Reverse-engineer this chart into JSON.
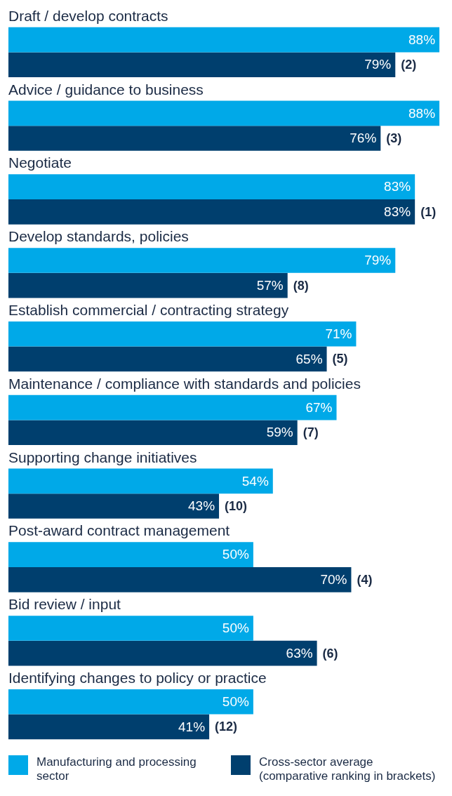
{
  "chart_data": {
    "type": "bar",
    "orientation": "horizontal",
    "categories": [
      "Draft / develop contracts",
      "Advice / guidance to business",
      "Negotiate",
      "Develop standards, policies",
      "Establish commercial / contracting strategy",
      "Maintenance / compliance with standards and policies",
      "Supporting change initiatives",
      "Post-award contract management",
      "Bid review / input",
      "Identifying changes to policy or practice"
    ],
    "series": [
      {
        "name": "Manufacturing and processing sector",
        "color": "#00a9e8",
        "values": [
          88,
          88,
          83,
          79,
          71,
          67,
          54,
          50,
          50,
          50
        ],
        "value_labels": [
          "88%",
          "88%",
          "83%",
          "79%",
          "71%",
          "67%",
          "54%",
          "50%",
          "50%",
          "50%"
        ]
      },
      {
        "name": "Cross-sector average (comparative ranking in brackets)",
        "color": "#003f6e",
        "values": [
          79,
          76,
          83,
          57,
          65,
          59,
          43,
          70,
          63,
          41
        ],
        "value_labels": [
          "79%",
          "76%",
          "83%",
          "57%",
          "65%",
          "59%",
          "43%",
          "70%",
          "63%",
          "41%"
        ]
      }
    ],
    "legend": "bottom left",
    "tick_labels": false,
    "annotations": [
      "(2)",
      "(3)",
      "(1)",
      "(8)",
      "(5)",
      "(7)",
      "(10)",
      "(4)",
      "(6)",
      "(12)"
    ]
  }
}
